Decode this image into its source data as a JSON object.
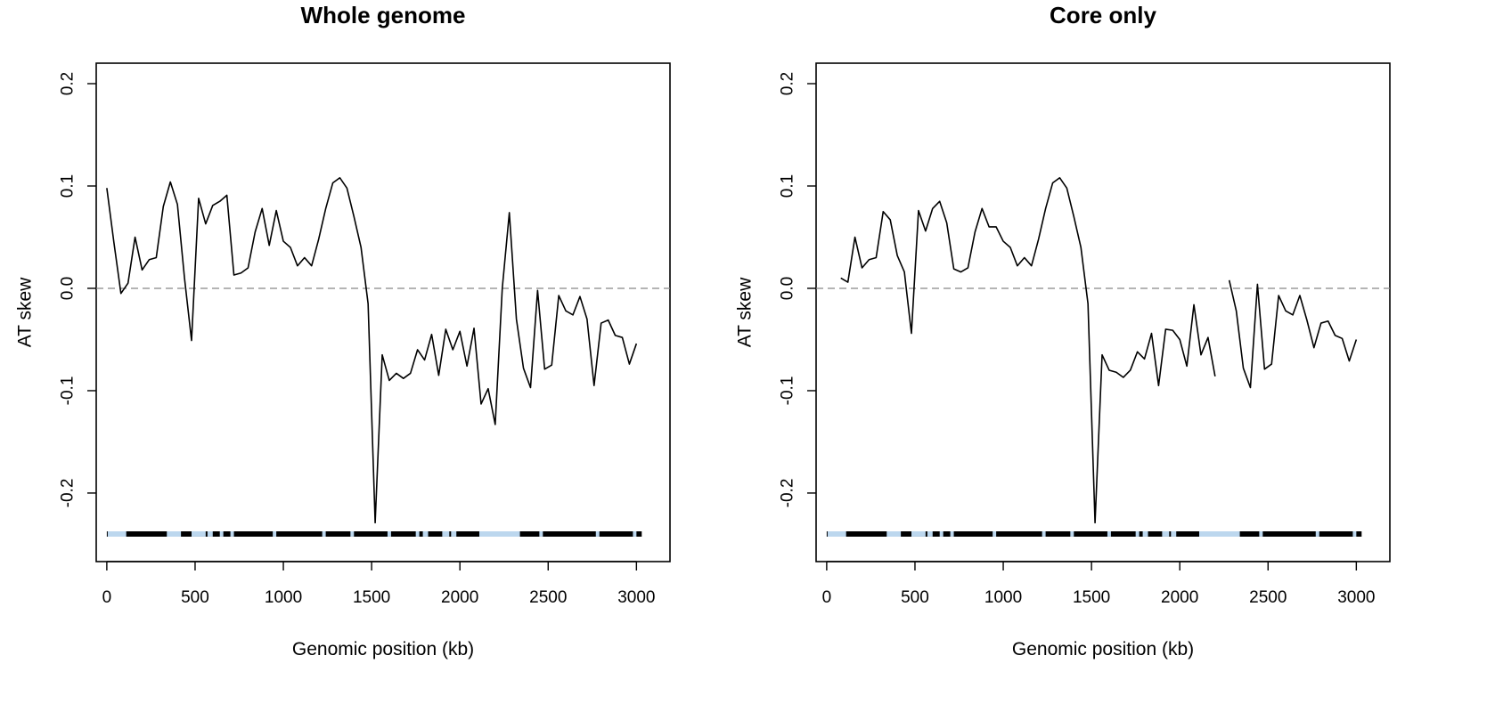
{
  "chart_data": [
    {
      "type": "line",
      "title": "Whole genome",
      "xlabel": "Genomic position (kb)",
      "ylabel": "AT skew",
      "xlim": [
        -60,
        3190
      ],
      "ylim": [
        -0.267,
        0.22
      ],
      "xticks": [
        0,
        500,
        1000,
        1500,
        2000,
        2500,
        3000
      ],
      "yticks": [
        -0.2,
        -0.1,
        0.0,
        0.1,
        0.2
      ],
      "xtick_labels": [
        "0",
        "500",
        "1000",
        "1500",
        "2000",
        "2500",
        "3000"
      ],
      "ytick_labels": [
        "-0.2",
        "-0.1",
        "0.0",
        "0.1",
        "0.2"
      ],
      "reference_line": {
        "y": 0.0,
        "style": "dashed",
        "color": "#888888"
      },
      "grid": false,
      "series": [
        {
          "color": "#000000",
          "x": [
            0,
            40,
            80,
            120,
            160,
            200,
            240,
            280,
            320,
            360,
            400,
            440,
            480,
            520,
            560,
            600,
            640,
            680,
            720,
            760,
            800,
            840,
            880,
            920,
            960,
            1000,
            1040,
            1080,
            1120,
            1160,
            1200,
            1240,
            1280,
            1320,
            1360,
            1400,
            1440,
            1480,
            1520,
            1560,
            1600,
            1640,
            1680,
            1720,
            1760,
            1800,
            1840,
            1880,
            1920,
            1960,
            2000,
            2040,
            2080,
            2120,
            2160,
            2200,
            2240,
            2280,
            2320,
            2360,
            2400,
            2440,
            2480,
            2520,
            2560,
            2600,
            2640,
            2680,
            2720,
            2760,
            2800,
            2840,
            2880,
            2920,
            2960,
            3000
          ],
          "y": [
            0.098,
            0.045,
            -0.005,
            0.005,
            0.05,
            0.018,
            0.028,
            0.03,
            0.08,
            0.104,
            0.082,
            0.01,
            -0.051,
            0.088,
            0.063,
            0.081,
            0.085,
            0.091,
            0.013,
            0.015,
            0.02,
            0.055,
            0.078,
            0.042,
            0.076,
            0.046,
            0.04,
            0.022,
            0.03,
            0.022,
            0.048,
            0.078,
            0.103,
            0.108,
            0.098,
            0.07,
            0.04,
            -0.015,
            -0.229,
            -0.065,
            -0.09,
            -0.083,
            -0.088,
            -0.083,
            -0.06,
            -0.07,
            -0.045,
            -0.085,
            -0.04,
            -0.06,
            -0.042,
            -0.076,
            -0.039,
            -0.113,
            -0.098,
            -0.133,
            0.0,
            0.074,
            -0.03,
            -0.078,
            -0.097,
            -0.002,
            -0.079,
            -0.075,
            -0.007,
            -0.022,
            -0.026,
            -0.008,
            -0.03,
            -0.095,
            -0.034,
            -0.031,
            -0.046,
            -0.048,
            -0.074,
            -0.054
          ]
        }
      ],
      "genome_bar": {
        "y": -0.24,
        "x_range": [
          0,
          3030
        ],
        "color": "#000000",
        "highlight_color": "#bcd7ee",
        "highlight_ranges": [
          [
            5,
            110
          ],
          [
            340,
            420
          ],
          [
            480,
            560
          ],
          [
            570,
            600
          ],
          [
            640,
            660
          ],
          [
            700,
            720
          ],
          [
            940,
            960
          ],
          [
            1220,
            1240
          ],
          [
            1380,
            1400
          ],
          [
            1590,
            1610
          ],
          [
            1750,
            1770
          ],
          [
            1790,
            1820
          ],
          [
            1900,
            1940
          ],
          [
            1950,
            1980
          ],
          [
            2110,
            2340
          ],
          [
            2450,
            2470
          ],
          [
            2770,
            2790
          ],
          [
            2980,
            3000
          ]
        ]
      }
    },
    {
      "type": "line",
      "title": "Core only",
      "xlabel": "Genomic position (kb)",
      "ylabel": "AT skew",
      "xlim": [
        -60,
        3190
      ],
      "ylim": [
        -0.267,
        0.22
      ],
      "xticks": [
        0,
        500,
        1000,
        1500,
        2000,
        2500,
        3000
      ],
      "yticks": [
        -0.2,
        -0.1,
        0.0,
        0.1,
        0.2
      ],
      "xtick_labels": [
        "0",
        "500",
        "1000",
        "1500",
        "2000",
        "2500",
        "3000"
      ],
      "ytick_labels": [
        "-0.2",
        "-0.1",
        "0.0",
        "0.1",
        "0.2"
      ],
      "reference_line": {
        "y": 0.0,
        "style": "dashed",
        "color": "#888888"
      },
      "grid": false,
      "series": [
        {
          "color": "#000000",
          "x": [
            80,
            120,
            160,
            200,
            240,
            280,
            320,
            360,
            400,
            440,
            480,
            520,
            560,
            600,
            640,
            680,
            720,
            760,
            800,
            840,
            880,
            920,
            960,
            1000,
            1040,
            1080,
            1120,
            1160,
            1200,
            1240,
            1280,
            1320,
            1360,
            1400,
            1440,
            1480,
            1520,
            1560,
            1600,
            1640,
            1680,
            1720,
            1760,
            1800,
            1840,
            1880,
            1920,
            1960,
            2000,
            2040,
            2080,
            2120,
            2160,
            2200,
            null,
            2280,
            2320,
            2360,
            2400,
            2440,
            2480,
            2520,
            2560,
            2600,
            2640,
            2680,
            2720,
            2760,
            2800,
            2840,
            2880,
            2920,
            2960,
            3000
          ],
          "y": [
            0.01,
            0.006,
            0.05,
            0.02,
            0.028,
            0.03,
            0.075,
            0.067,
            0.032,
            0.016,
            -0.044,
            0.076,
            0.056,
            0.078,
            0.085,
            0.064,
            0.019,
            0.016,
            0.02,
            0.055,
            0.078,
            0.06,
            0.06,
            0.046,
            0.04,
            0.022,
            0.03,
            0.022,
            0.048,
            0.078,
            0.103,
            0.108,
            0.098,
            0.07,
            0.04,
            -0.015,
            -0.229,
            -0.065,
            -0.08,
            -0.082,
            -0.087,
            -0.08,
            -0.062,
            -0.069,
            -0.044,
            -0.095,
            -0.04,
            -0.041,
            -0.05,
            -0.076,
            -0.016,
            -0.065,
            -0.048,
            -0.086,
            null,
            0.008,
            -0.022,
            -0.078,
            -0.097,
            0.004,
            -0.079,
            -0.074,
            -0.007,
            -0.022,
            -0.026,
            -0.007,
            -0.031,
            -0.058,
            -0.034,
            -0.032,
            -0.046,
            -0.049,
            -0.071,
            -0.05
          ]
        }
      ],
      "genome_bar": {
        "y": -0.24,
        "x_range": [
          0,
          3030
        ],
        "color": "#000000",
        "highlight_color": "#bcd7ee",
        "highlight_ranges": [
          [
            5,
            110
          ],
          [
            340,
            420
          ],
          [
            480,
            560
          ],
          [
            570,
            600
          ],
          [
            640,
            660
          ],
          [
            700,
            720
          ],
          [
            940,
            960
          ],
          [
            1220,
            1240
          ],
          [
            1380,
            1400
          ],
          [
            1590,
            1610
          ],
          [
            1750,
            1770
          ],
          [
            1790,
            1820
          ],
          [
            1900,
            1940
          ],
          [
            1950,
            1980
          ],
          [
            2110,
            2340
          ],
          [
            2450,
            2470
          ],
          [
            2770,
            2790
          ],
          [
            2980,
            3000
          ]
        ]
      }
    }
  ]
}
